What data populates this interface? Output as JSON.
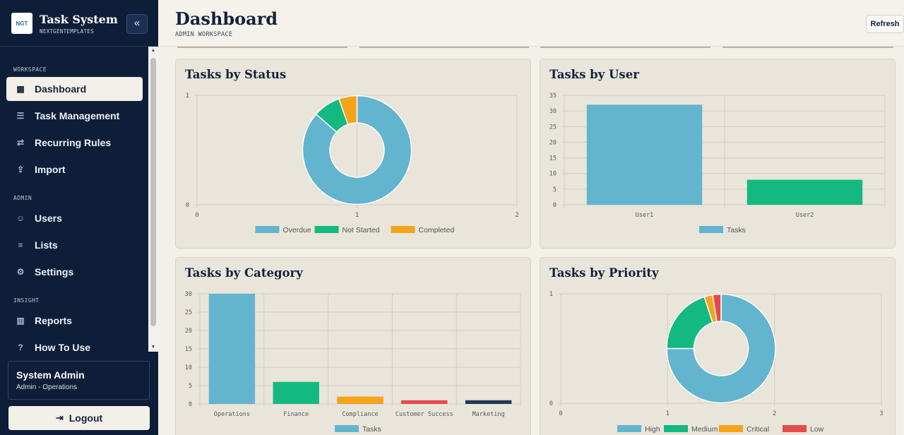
{
  "app": {
    "title": "Task System",
    "subtitle": "NEXTGENTEMPLATES",
    "logo_text": "NGT",
    "collapse_icon": "chevrons-left-icon"
  },
  "sidebar": {
    "sections": [
      {
        "label": "WORKSPACE"
      },
      {
        "label": "ADMIN"
      },
      {
        "label": "INSIGHT"
      }
    ],
    "items": [
      {
        "label": "Dashboard",
        "icon": "grid-icon",
        "active": true
      },
      {
        "label": "Task Management",
        "icon": "checklist-icon"
      },
      {
        "label": "Recurring Rules",
        "icon": "repeat-icon"
      },
      {
        "label": "Import",
        "icon": "file-import-icon"
      },
      {
        "label": "Users",
        "icon": "users-icon"
      },
      {
        "label": "Lists",
        "icon": "list-icon"
      },
      {
        "label": "Settings",
        "icon": "gear-icon"
      },
      {
        "label": "Reports",
        "icon": "bar-chart-icon"
      },
      {
        "label": "How To Use",
        "icon": "help-icon"
      }
    ]
  },
  "user": {
    "name": "System Admin",
    "role": "Admin - Operations"
  },
  "logout_label": "Logout",
  "header": {
    "title": "Dashboard",
    "subtitle": "ADMIN WORKSPACE",
    "refresh_label": "Refresh"
  },
  "colors": {
    "blue": "#63b4cf",
    "green": "#13b980",
    "orange": "#f5a31a",
    "red": "#e54b4b",
    "navy": "#1e3a52",
    "sidebar_bg": "#0f1e38"
  },
  "chart_data": [
    {
      "type": "pie",
      "variant": "doughnut",
      "title": "Tasks by Status",
      "labels": [
        "Overdue",
        "Not Started",
        "Completed"
      ],
      "values": [
        32,
        3,
        2
      ],
      "colors": [
        "#63b4cf",
        "#13b980",
        "#f5a31a"
      ],
      "x_ticks": [
        "0",
        "1",
        "2"
      ],
      "y_ticks": [
        "0",
        "1"
      ],
      "legend": "bottom",
      "grid": true
    },
    {
      "type": "bar",
      "title": "Tasks by User",
      "categories": [
        "User1",
        "User2"
      ],
      "series": [
        {
          "name": "Tasks",
          "values": [
            32,
            8
          ]
        }
      ],
      "bar_colors": [
        "#63b4cf",
        "#13b980"
      ],
      "ylim": [
        0,
        35
      ],
      "y_ticks": [
        0,
        5,
        10,
        15,
        20,
        25,
        30,
        35
      ],
      "legend": "bottom",
      "grid": true
    },
    {
      "type": "bar",
      "title": "Tasks by Category",
      "categories": [
        "Operations",
        "Finance",
        "Compliance",
        "Customer Success",
        "Marketing"
      ],
      "series": [
        {
          "name": "Tasks",
          "values": [
            30,
            6,
            2,
            1,
            1
          ]
        }
      ],
      "bar_colors": [
        "#63b4cf",
        "#13b980",
        "#f5a31a",
        "#e54b4b",
        "#1e3a52"
      ],
      "ylim": [
        0,
        30
      ],
      "y_ticks": [
        0,
        5,
        10,
        15,
        20,
        25,
        30
      ],
      "legend": "bottom",
      "grid": true
    },
    {
      "type": "pie",
      "variant": "doughnut",
      "title": "Tasks by Priority",
      "labels": [
        "High",
        "Medium",
        "Critical",
        "Low"
      ],
      "values": [
        30,
        8,
        1,
        1
      ],
      "colors": [
        "#63b4cf",
        "#13b980",
        "#f5a31a",
        "#e54b4b"
      ],
      "x_ticks": [
        "0",
        "1",
        "2",
        "3"
      ],
      "y_ticks": [
        "0",
        "1"
      ],
      "legend": "bottom",
      "grid": true
    }
  ]
}
